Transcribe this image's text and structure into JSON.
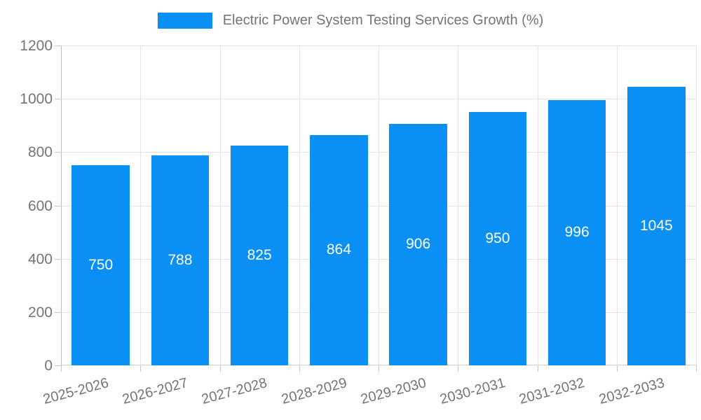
{
  "chart_data": {
    "type": "bar",
    "title": "Electric Power System Testing Services Growth (%)",
    "categories": [
      "2025-2026",
      "2026-2027",
      "2027-2028",
      "2028-2029",
      "2029-2030",
      "2030-2031",
      "2031-2032",
      "2032-2033"
    ],
    "values": [
      750,
      788,
      825,
      864,
      906,
      950,
      996,
      1045
    ],
    "xlabel": "",
    "ylabel": "",
    "ylim": [
      0,
      1200
    ],
    "ytick_step": 200,
    "grid": "on",
    "legend_position": "top-center",
    "bar_label_position": "center-inside",
    "colors": {
      "bar": "#0a90f5",
      "bar_value_text": "#ffffff",
      "tick_text": "#757575",
      "legend_text": "#757575",
      "grid": "#e3e3e3",
      "axis": "#bdbdbd",
      "background": "#ffffff"
    }
  }
}
